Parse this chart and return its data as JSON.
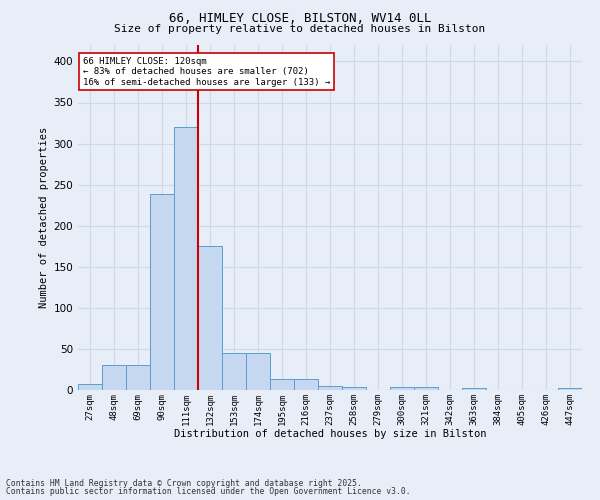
{
  "title1": "66, HIMLEY CLOSE, BILSTON, WV14 0LL",
  "title2": "Size of property relative to detached houses in Bilston",
  "xlabel": "Distribution of detached houses by size in Bilston",
  "ylabel": "Number of detached properties",
  "categories": [
    "27sqm",
    "48sqm",
    "69sqm",
    "90sqm",
    "111sqm",
    "132sqm",
    "153sqm",
    "174sqm",
    "195sqm",
    "216sqm",
    "237sqm",
    "258sqm",
    "279sqm",
    "300sqm",
    "321sqm",
    "342sqm",
    "363sqm",
    "384sqm",
    "405sqm",
    "426sqm",
    "447sqm"
  ],
  "values": [
    7,
    31,
    31,
    239,
    320,
    175,
    45,
    45,
    14,
    14,
    5,
    4,
    0,
    4,
    4,
    0,
    2,
    0,
    0,
    0,
    2
  ],
  "bar_color": "#c5d8f0",
  "bar_edge_color": "#5a9fd4",
  "grid_color": "#d0d8e8",
  "background_color": "#e8eef8",
  "vline_x": 4.5,
  "vline_color": "#cc0000",
  "annotation_line1": "66 HIMLEY CLOSE: 120sqm",
  "annotation_line2": "← 83% of detached houses are smaller (702)",
  "annotation_line3": "16% of semi-detached houses are larger (133) →",
  "annotation_box_color": "#ffffff",
  "annotation_box_edge": "#cc0000",
  "footer1": "Contains HM Land Registry data © Crown copyright and database right 2025.",
  "footer2": "Contains public sector information licensed under the Open Government Licence v3.0.",
  "ylim": [
    0,
    420
  ],
  "yticks": [
    0,
    50,
    100,
    150,
    200,
    250,
    300,
    350,
    400
  ]
}
